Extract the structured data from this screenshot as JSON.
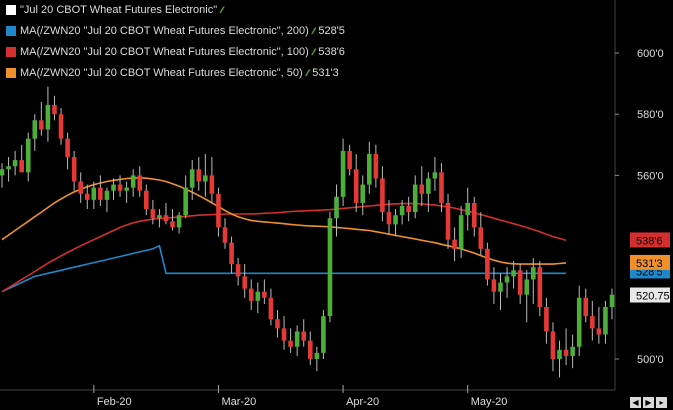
{
  "chart_data": {
    "type": "candlestick",
    "title": "\"Jul 20 CBOT Wheat Futures Electronic\"",
    "legend_placement": "top-left",
    "grid": false,
    "colors": {
      "up": "#4caf3a",
      "down": "#e53935",
      "background": "#000000",
      "ma200": "#1e88c8",
      "ma100": "#d32f2f",
      "ma50": "#f0902a"
    },
    "y_ticks": [
      "600'0",
      "580'0",
      "560'0",
      "500'0"
    ],
    "ylim": [
      494,
      614
    ],
    "x_ticks": [
      "Feb-20",
      "Mar-20",
      "Apr-20",
      "May-20"
    ],
    "x_tick_index": [
      14,
      33,
      52,
      71
    ],
    "series": [
      {
        "name": "MA(/ZWN20 \"Jul 20 CBOT Wheat Futures Electronic\", 200)",
        "color": "#1e88c8",
        "last_label": "528'5",
        "last_value": 528.6,
        "values": [
          522,
          523,
          524,
          525,
          526,
          527,
          527.5,
          528,
          528.5,
          529,
          529.5,
          530,
          530.5,
          531,
          531.5,
          532,
          532.5,
          533,
          533.5,
          534,
          534.5,
          535,
          535.5,
          536,
          537,
          528,
          528,
          528,
          528,
          528,
          528,
          528,
          528,
          528,
          528,
          528,
          528,
          528,
          528,
          528,
          528,
          528,
          528,
          528,
          528,
          528,
          528,
          528,
          528,
          528,
          528,
          528,
          528,
          528,
          528,
          528,
          528,
          528,
          528,
          528,
          528,
          528,
          528,
          528,
          528,
          528,
          528,
          528,
          528,
          528,
          528,
          528,
          528,
          528,
          528,
          528,
          528,
          528,
          528,
          528,
          528,
          528,
          528,
          528,
          528,
          528,
          528
        ]
      },
      {
        "name": "MA(/ZWN20 \"Jul 20 CBOT Wheat Futures Electronic\", 100)",
        "color": "#d32f2f",
        "last_label": "538'6",
        "last_value": 538.75,
        "values": [
          522,
          523.3,
          524.6,
          526,
          527.3,
          528.6,
          530,
          531.3,
          532.5,
          533.7,
          534.8,
          535.9,
          537,
          538,
          539,
          540,
          541,
          542,
          543,
          543.8,
          544.5,
          545,
          545.4,
          545.7,
          545.9,
          546,
          546.2,
          546.4,
          546.6,
          546.8,
          547,
          547.1,
          547.2,
          547.3,
          547.4,
          547.4,
          547.4,
          547.4,
          547.4,
          547.5,
          547.6,
          547.7,
          547.8,
          548,
          548.2,
          548.3,
          548.4,
          548.5,
          548.6,
          548.7,
          548.8,
          549,
          549.2,
          549.4,
          549.6,
          549.8,
          550,
          550.2,
          550.4,
          550.6,
          550.7,
          550.8,
          550.8,
          550.8,
          550.7,
          550.5,
          550.3,
          550,
          549.7,
          549.3,
          548.8,
          548.3,
          547.8,
          547.2,
          546.6,
          546,
          545.4,
          544.8,
          544.2,
          543.6,
          543,
          542.3,
          541.6,
          540.8,
          540,
          539.4,
          538.75
        ]
      },
      {
        "name": "MA(/ZWN20 \"Jul 20 CBOT Wheat Futures Electronic\", 50)",
        "color": "#f0902a",
        "last_label": "531'3",
        "last_value": 531.4,
        "values": [
          539,
          540.5,
          542,
          543.5,
          545,
          546.5,
          548,
          549.5,
          551,
          552.3,
          553.5,
          554.6,
          555.5,
          556.3,
          557,
          557.5,
          558,
          558.4,
          558.7,
          559,
          559.1,
          559.2,
          559.1,
          558.8,
          558.5,
          558,
          557.3,
          556.5,
          555.5,
          554.5,
          553.4,
          552.3,
          551,
          549.8,
          548.5,
          547.4,
          546.5,
          545.8,
          545.3,
          545,
          544.8,
          544.6,
          544.4,
          544.2,
          544,
          543.8,
          543.6,
          543.5,
          543.4,
          543.3,
          543.2,
          543,
          542.8,
          542.6,
          542.4,
          542.2,
          542,
          541.6,
          541.2,
          540.8,
          540.4,
          540,
          539.6,
          539.2,
          538.8,
          538.4,
          538,
          537.5,
          537,
          536.5,
          536,
          535.3,
          534.6,
          533.8,
          533,
          532.3,
          531.7,
          531.3,
          531.1,
          531,
          531,
          531,
          531,
          531,
          531,
          531.2,
          531.4
        ]
      }
    ],
    "last_price": {
      "label": "520.75",
      "value": 520.75
    },
    "candles": [
      [
        560,
        564,
        556,
        562
      ],
      [
        562,
        566,
        558,
        563
      ],
      [
        563,
        568,
        560,
        565
      ],
      [
        565,
        570,
        562,
        561
      ],
      [
        561,
        574,
        558,
        572
      ],
      [
        572,
        580,
        568,
        578
      ],
      [
        578,
        584,
        573,
        575
      ],
      [
        575,
        589,
        571,
        583
      ],
      [
        583,
        586,
        578,
        580
      ],
      [
        580,
        582,
        570,
        572
      ],
      [
        572,
        574,
        562,
        566
      ],
      [
        566,
        568,
        555,
        558
      ],
      [
        558,
        561,
        551,
        554
      ],
      [
        554,
        557,
        549,
        552
      ],
      [
        552,
        558,
        549,
        556
      ],
      [
        556,
        560,
        550,
        552
      ],
      [
        552,
        556,
        548,
        555
      ],
      [
        555,
        559,
        552,
        557
      ],
      [
        557,
        560,
        553,
        555
      ],
      [
        555,
        558,
        551,
        556
      ],
      [
        556,
        562,
        553,
        560
      ],
      [
        560,
        563,
        553,
        555
      ],
      [
        555,
        557,
        547,
        549
      ],
      [
        549,
        552,
        544,
        546
      ],
      [
        546,
        549,
        543,
        547
      ],
      [
        547,
        551,
        544,
        545
      ],
      [
        545,
        549,
        542,
        543
      ],
      [
        543,
        548,
        541,
        547
      ],
      [
        547,
        560,
        546,
        556
      ],
      [
        556,
        565,
        552,
        562
      ],
      [
        562,
        566,
        555,
        558
      ],
      [
        558,
        567,
        553,
        560
      ],
      [
        560,
        566,
        551,
        554
      ],
      [
        554,
        556,
        540,
        543
      ],
      [
        543,
        546,
        536,
        538
      ],
      [
        538,
        540,
        528,
        531
      ],
      [
        531,
        533,
        524,
        527
      ],
      [
        527,
        531,
        520,
        523
      ],
      [
        523,
        526,
        516,
        519
      ],
      [
        519,
        525,
        515,
        522
      ],
      [
        522,
        526,
        518,
        520
      ],
      [
        520,
        523,
        511,
        513
      ],
      [
        513,
        516,
        507,
        510
      ],
      [
        510,
        514,
        503,
        506
      ],
      [
        506,
        510,
        502,
        504
      ],
      [
        504,
        511,
        501,
        509
      ],
      [
        509,
        513,
        504,
        506
      ],
      [
        506,
        509,
        498,
        500
      ],
      [
        500,
        504,
        496,
        502
      ],
      [
        502,
        516,
        500,
        514
      ],
      [
        514,
        548,
        512,
        546
      ],
      [
        546,
        557,
        540,
        553
      ],
      [
        553,
        572,
        550,
        568
      ],
      [
        568,
        570,
        560,
        562
      ],
      [
        562,
        567,
        548,
        551
      ],
      [
        551,
        560,
        547,
        557
      ],
      [
        557,
        571,
        554,
        567
      ],
      [
        567,
        570,
        556,
        559
      ],
      [
        559,
        563,
        545,
        548
      ],
      [
        548,
        552,
        541,
        544
      ],
      [
        544,
        549,
        540,
        547
      ],
      [
        547,
        552,
        544,
        550
      ],
      [
        550,
        553,
        545,
        548
      ],
      [
        548,
        560,
        546,
        557
      ],
      [
        557,
        563,
        550,
        554
      ],
      [
        554,
        561,
        548,
        559
      ],
      [
        559,
        566,
        555,
        561
      ],
      [
        561,
        564,
        548,
        551
      ],
      [
        551,
        554,
        536,
        539
      ],
      [
        539,
        543,
        532,
        536
      ],
      [
        536,
        550,
        533,
        547
      ],
      [
        547,
        556,
        542,
        551
      ],
      [
        551,
        553,
        540,
        543
      ],
      [
        543,
        548,
        534,
        536
      ],
      [
        536,
        538,
        524,
        526
      ],
      [
        526,
        530,
        518,
        522
      ],
      [
        522,
        528,
        516,
        525
      ],
      [
        525,
        530,
        520,
        527
      ],
      [
        527,
        532,
        523,
        529
      ],
      [
        529,
        531,
        518,
        521
      ],
      [
        521,
        529,
        512,
        526
      ],
      [
        526,
        533,
        518,
        530
      ],
      [
        530,
        532,
        514,
        517
      ],
      [
        517,
        520,
        505,
        509
      ],
      [
        509,
        512,
        496,
        500
      ],
      [
        500,
        506,
        494,
        503
      ],
      [
        503,
        510,
        498,
        501
      ],
      [
        501,
        508,
        497,
        504
      ],
      [
        504,
        524,
        501,
        520
      ],
      [
        520,
        523,
        512,
        514
      ],
      [
        514,
        519,
        506,
        510
      ],
      [
        510,
        517,
        505,
        508
      ],
      [
        508,
        519,
        505,
        517
      ],
      [
        517,
        523,
        513,
        521
      ]
    ]
  }
}
